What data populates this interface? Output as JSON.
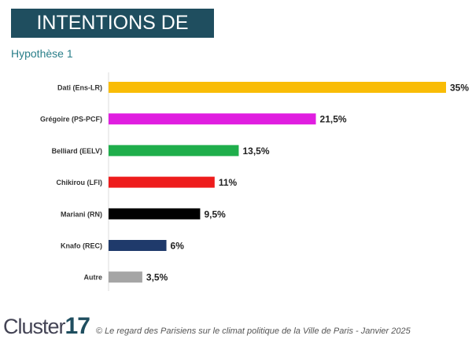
{
  "title": "INTENTIONS DE VOTE",
  "subtitle": "Hypothèse 1",
  "chart_data": {
    "type": "bar",
    "orientation": "horizontal",
    "categories": [
      "Dati (Ens-LR)",
      "Grégoire (PS-PCF)",
      "Belliard (EELV)",
      "Chikirou (LFI)",
      "Mariani (RN)",
      "Knafo (REC)",
      "Autre"
    ],
    "values": [
      35,
      21.5,
      13.5,
      11,
      9.5,
      6,
      3.5
    ],
    "labels": [
      "35%",
      "21,5%",
      "13,5%",
      "11%",
      "9,5%",
      "6%",
      "3,5%"
    ],
    "colors": [
      "#f9bc06",
      "#e01ee0",
      "#1fae4b",
      "#ee1c1c",
      "#000000",
      "#1f3a6b",
      "#a5a5a5"
    ],
    "xlim": [
      0,
      35
    ],
    "grid": false
  },
  "footer": {
    "logo": "Cluster17",
    "source": "© Le regard des Parisiens sur le climat politique de la Ville de Paris  - Janvier 2025"
  }
}
